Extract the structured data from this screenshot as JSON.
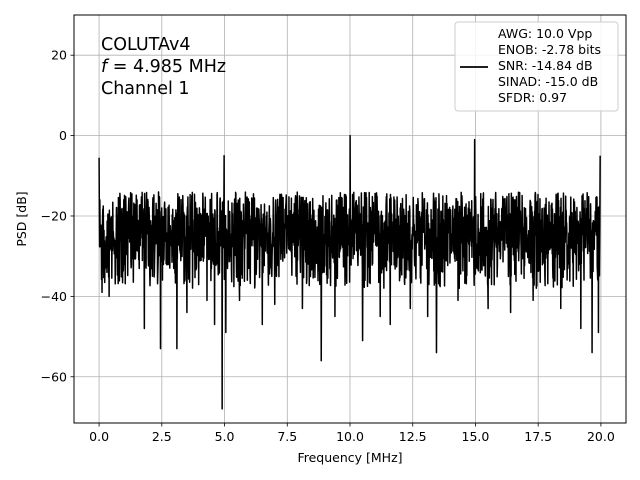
{
  "chart_data": {
    "type": "line",
    "xlabel": "Frequency [MHz]",
    "ylabel": "PSD [dB]",
    "xlim": [
      -1.0,
      21.0
    ],
    "ylim": [
      -71.5,
      30.0
    ],
    "xticks": [
      0.0,
      2.5,
      5.0,
      7.5,
      10.0,
      12.5,
      15.0,
      17.5,
      20.0
    ],
    "xtick_labels": [
      "0.0",
      "2.5",
      "5.0",
      "7.5",
      "10.0",
      "12.5",
      "15.0",
      "17.5",
      "20.0"
    ],
    "yticks": [
      -60,
      -40,
      -20,
      0,
      20
    ],
    "ytick_labels": [
      "−60",
      "−40",
      "−20",
      "0",
      "20"
    ],
    "grid": true,
    "line_color": "#000000",
    "annotation": {
      "line1": "COLUTAv4",
      "line2_var": "f",
      "line2_rest": " = 4.985 MHz",
      "line3": "Channel 1"
    },
    "legend": {
      "location": "upper right",
      "entries": [
        "AWG: 10.0 Vpp",
        "ENOB: -2.78 bits",
        "SNR: -14.84 dB",
        "SINAD: -15.0 dB",
        "SFDR: 0.97"
      ]
    },
    "noise_floor": {
      "mean_db": -25.0,
      "spread_db": 6.5
    },
    "spikes": [
      {
        "x": 0.0,
        "y": -5.5
      },
      {
        "x": 4.985,
        "y": -5.0
      },
      {
        "x": 10.0,
        "y": 0.0
      },
      {
        "x": 14.97,
        "y": -1.0
      },
      {
        "x": 19.97,
        "y": -5.0
      }
    ],
    "dips": [
      {
        "x": 0.12,
        "y": -39
      },
      {
        "x": 0.4,
        "y": -40
      },
      {
        "x": 1.8,
        "y": -48
      },
      {
        "x": 2.45,
        "y": -53
      },
      {
        "x": 3.1,
        "y": -53
      },
      {
        "x": 3.5,
        "y": -44
      },
      {
        "x": 4.3,
        "y": -41
      },
      {
        "x": 4.6,
        "y": -47
      },
      {
        "x": 4.9,
        "y": -68
      },
      {
        "x": 5.05,
        "y": -49
      },
      {
        "x": 5.6,
        "y": -41
      },
      {
        "x": 6.5,
        "y": -47
      },
      {
        "x": 7.0,
        "y": -42
      },
      {
        "x": 8.1,
        "y": -43
      },
      {
        "x": 8.85,
        "y": -56
      },
      {
        "x": 9.4,
        "y": -45
      },
      {
        "x": 10.5,
        "y": -51
      },
      {
        "x": 11.2,
        "y": -45
      },
      {
        "x": 11.6,
        "y": -47
      },
      {
        "x": 12.4,
        "y": -43
      },
      {
        "x": 13.1,
        "y": -45
      },
      {
        "x": 13.45,
        "y": -54
      },
      {
        "x": 14.3,
        "y": -41
      },
      {
        "x": 15.5,
        "y": -43
      },
      {
        "x": 16.4,
        "y": -44
      },
      {
        "x": 17.3,
        "y": -41
      },
      {
        "x": 18.4,
        "y": -43
      },
      {
        "x": 19.2,
        "y": -48
      },
      {
        "x": 19.65,
        "y": -54
      },
      {
        "x": 19.9,
        "y": -49
      }
    ]
  }
}
